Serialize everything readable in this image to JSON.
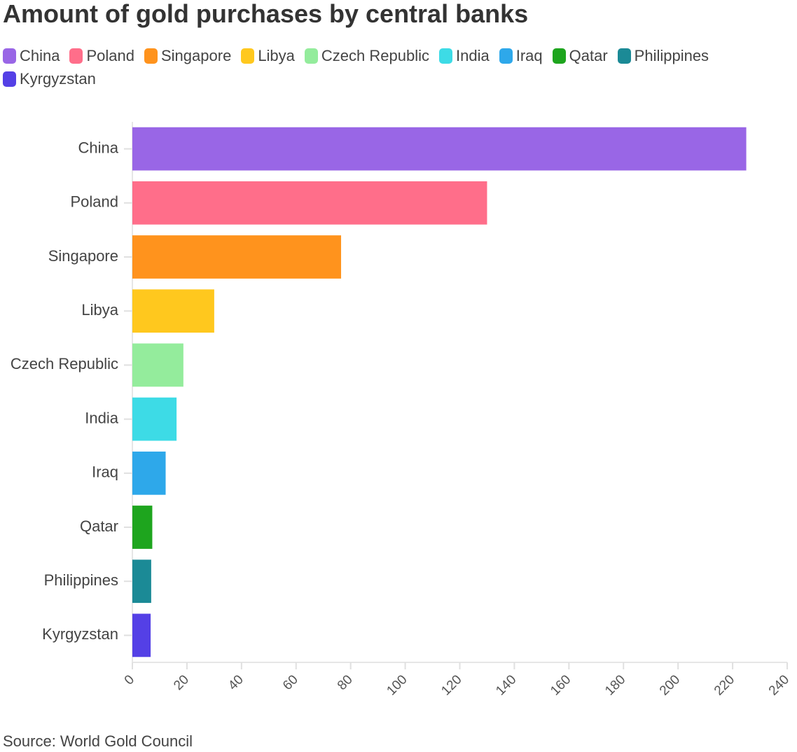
{
  "title": "Amount of gold purchases by central banks",
  "source": "Source: World Gold Council",
  "chart_data": {
    "type": "bar",
    "orientation": "horizontal",
    "title": "Amount of gold purchases by central banks",
    "xlabel": "",
    "ylabel": "",
    "categories": [
      "China",
      "Poland",
      "Singapore",
      "Libya",
      "Czech Republic",
      "India",
      "Iraq",
      "Qatar",
      "Philippines",
      "Kyrgyzstan"
    ],
    "values": [
      225,
      130,
      76.5,
      30,
      18.7,
      16.2,
      12.2,
      7.3,
      6.9,
      6.7
    ],
    "colors": [
      "#9966e6",
      "#ff6e8a",
      "#ff931d",
      "#ffc81e",
      "#94ec9c",
      "#3ddbe6",
      "#2ea8ea",
      "#1ea51e",
      "#1b8a96",
      "#5440e6"
    ],
    "xlim": [
      0,
      240
    ],
    "xticks": [
      0,
      20,
      40,
      60,
      80,
      100,
      120,
      140,
      160,
      180,
      200,
      220,
      240
    ],
    "grid": false,
    "legend_position": "top"
  }
}
